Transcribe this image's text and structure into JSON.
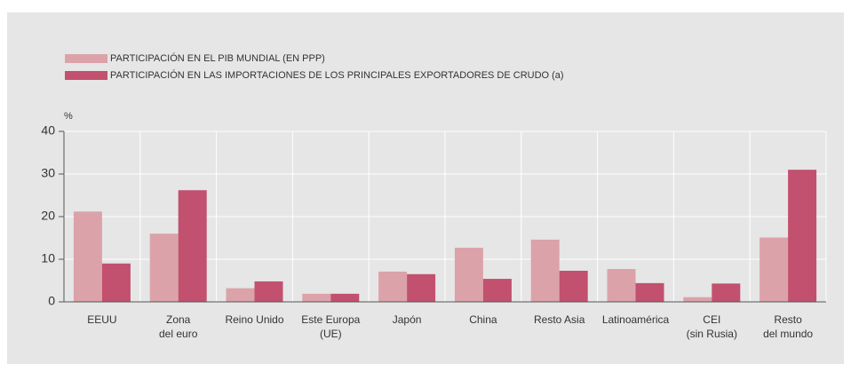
{
  "chart_data": {
    "type": "bar",
    "y_label": "%",
    "categories": [
      "EEUU",
      "Zona\ndel euro",
      "Reino Unido",
      "Este Europa\n(UE)",
      "Japón",
      "China",
      "Resto Asia",
      "Latinoamérica",
      "CEI\n(sin Rusia)",
      "Resto\ndel mundo"
    ],
    "series": [
      {
        "name": "PARTICIPACIÓN EN EL PIB MUNDIAL (EN PPP)",
        "color": "#dba3a9",
        "values": [
          21.2,
          16,
          3.2,
          1.9,
          7.1,
          12.7,
          14.6,
          7.7,
          1.1,
          15.1
        ]
      },
      {
        "name": "PARTICIPACIÓN EN LAS IMPORTACIONES DE LOS PRINCIPALES EXPORTADORES DE CRUDO (a)",
        "color": "#c2506f",
        "values": [
          9,
          26.2,
          4.8,
          1.9,
          6.5,
          5.4,
          7.3,
          4.4,
          4.3,
          31
        ]
      }
    ],
    "ylim": [
      0,
      40
    ],
    "yticks": [
      0,
      10,
      20,
      30,
      40
    ],
    "grid": true
  }
}
